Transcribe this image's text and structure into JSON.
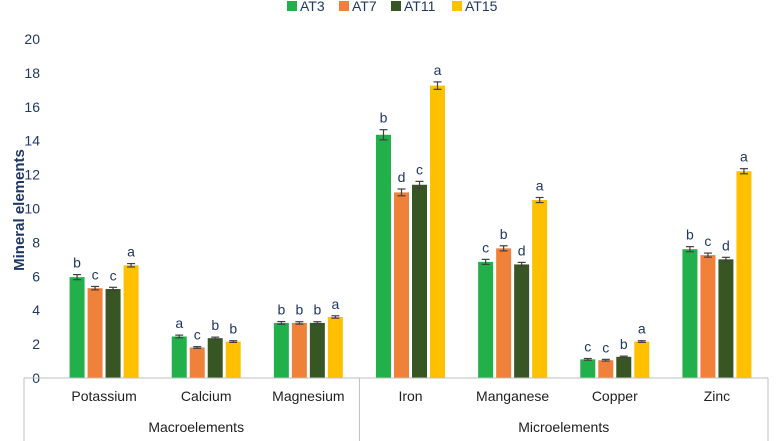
{
  "chart_data": {
    "type": "bar",
    "title": "",
    "xlabel": "",
    "ylabel": "Mineral elements",
    "ylim": [
      0,
      20
    ],
    "yticks": [
      0,
      2,
      4,
      6,
      8,
      10,
      12,
      14,
      16,
      18,
      20
    ],
    "categories": [
      "Potassium",
      "Calcium",
      "Magnesium",
      "Iron",
      "Manganese",
      "Copper",
      "Zinc"
    ],
    "groups": [
      {
        "label": "Macroelements",
        "categories": [
          "Potassium",
          "Calcium",
          "Magnesium"
        ]
      },
      {
        "label": "Microelements",
        "categories": [
          "Iron",
          "Manganese",
          "Copper",
          "Zinc"
        ]
      }
    ],
    "legend_position": "top",
    "grid": false,
    "series": [
      {
        "name": "AT3",
        "color": "#22b04b",
        "values": [
          5.95,
          2.45,
          3.25,
          14.35,
          6.85,
          1.1,
          7.6
        ],
        "errors": [
          0.15,
          0.08,
          0.08,
          0.3,
          0.15,
          0.05,
          0.15
        ],
        "letters": [
          "b",
          "a",
          "b",
          "b",
          "c",
          "c",
          "b"
        ]
      },
      {
        "name": "AT7",
        "color": "#f0813a",
        "values": [
          5.3,
          1.8,
          3.25,
          10.95,
          7.65,
          1.05,
          7.25
        ],
        "errors": [
          0.1,
          0.05,
          0.07,
          0.2,
          0.15,
          0.05,
          0.12
        ],
        "letters": [
          "c",
          "c",
          "b",
          "d",
          "b",
          "c",
          "c"
        ]
      },
      {
        "name": "AT11",
        "color": "#375623",
        "values": [
          5.25,
          2.35,
          3.25,
          11.4,
          6.7,
          1.25,
          7.0
        ],
        "errors": [
          0.1,
          0.06,
          0.07,
          0.2,
          0.12,
          0.04,
          0.12
        ],
        "letters": [
          "c",
          "b",
          "b",
          "c",
          "d",
          "b",
          "d"
        ]
      },
      {
        "name": "AT15",
        "color": "#ffc000",
        "values": [
          6.65,
          2.15,
          3.6,
          17.25,
          10.5,
          2.15,
          12.2
        ],
        "errors": [
          0.1,
          0.05,
          0.07,
          0.22,
          0.15,
          0.05,
          0.15
        ],
        "letters": [
          "a",
          "b",
          "a",
          "a",
          "a",
          "a",
          "a"
        ]
      }
    ]
  }
}
